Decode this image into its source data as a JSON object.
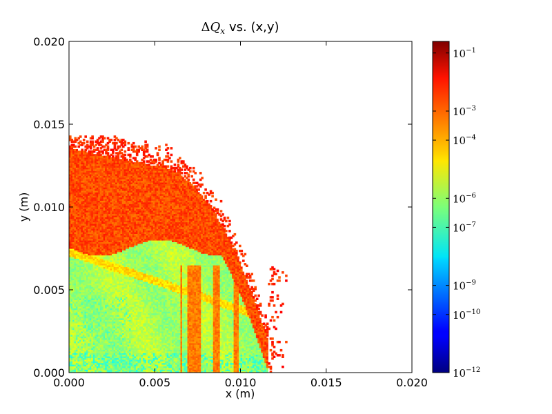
{
  "chart_data": {
    "type": "heatmap",
    "title": "ΔQx vs. (x,y)",
    "title_parts": {
      "delta": "Δ",
      "symbol": "Q",
      "subscript": "x",
      "suffix": "vs. (x,y)"
    },
    "xlabel": "x (m)",
    "ylabel": "y (m)",
    "xlim": [
      0.0,
      0.02
    ],
    "ylim": [
      0.0,
      0.02
    ],
    "xticks": [
      "0.000",
      "0.005",
      "0.010",
      "0.015",
      "0.020"
    ],
    "yticks": [
      "0.000",
      "0.005",
      "0.010",
      "0.015",
      "0.020"
    ],
    "xtick_values": [
      0.0,
      0.005,
      0.01,
      0.015,
      0.02
    ],
    "ytick_values": [
      0.0,
      0.005,
      0.01,
      0.015,
      0.02
    ],
    "colorbar": {
      "scale": "log",
      "colormap": "jet",
      "range": [
        1e-12,
        0.25
      ],
      "tick_values": [
        1e-12,
        1e-10,
        1e-09,
        1e-07,
        1e-06,
        0.0001,
        0.001,
        0.1
      ],
      "ticks": [
        {
          "base": "10",
          "exp": "−12"
        },
        {
          "base": "10",
          "exp": "−10"
        },
        {
          "base": "10",
          "exp": "−9"
        },
        {
          "base": "10",
          "exp": "−7"
        },
        {
          "base": "10",
          "exp": "−6"
        },
        {
          "base": "10",
          "exp": "−4"
        },
        {
          "base": "10",
          "exp": "−3"
        },
        {
          "base": "10",
          "exp": "−1"
        }
      ]
    },
    "regions": [
      {
        "name": "core",
        "x": [
          0.0,
          0.0115
        ],
        "y": [
          0.0,
          0.0075
        ],
        "value_range": [
          1e-08,
          1e-05
        ]
      },
      {
        "name": "upper-band",
        "x": [
          0.0,
          0.011
        ],
        "y": [
          0.0075,
          0.0135
        ],
        "value_range": [
          0.0001,
          0.005
        ]
      },
      {
        "name": "scattered-edge",
        "x": [
          0.0,
          0.0128
        ],
        "y": [
          0.0,
          0.0142
        ],
        "value_range": [
          0.001,
          0.01
        ]
      },
      {
        "name": "vertical-streaks",
        "x": [
          0.0065,
          0.0112
        ],
        "y": [
          0.0,
          0.0065
        ],
        "value_range": [
          0.0001,
          0.001
        ]
      }
    ],
    "grid": false
  }
}
